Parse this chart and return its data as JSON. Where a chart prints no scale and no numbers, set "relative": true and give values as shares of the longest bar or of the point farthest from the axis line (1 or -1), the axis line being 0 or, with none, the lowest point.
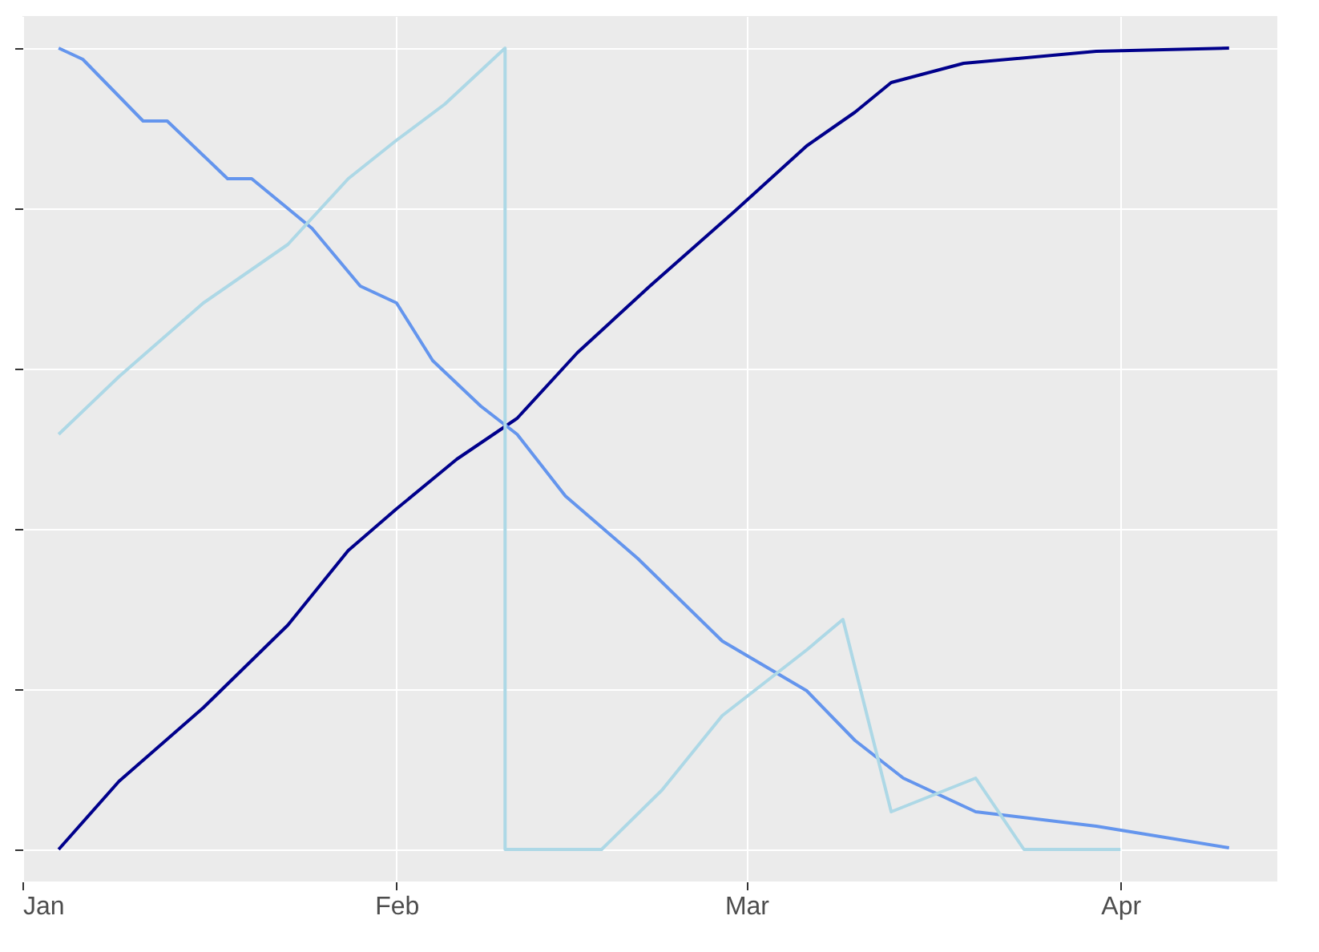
{
  "chart_data": {
    "type": "line",
    "relative": true,
    "grid": true,
    "xlim": [
      "--01-01",
      "--04-14"
    ],
    "xticks": [
      {
        "value": "--01-01",
        "label": "Jan"
      },
      {
        "value": "--02-01",
        "label": "Feb"
      },
      {
        "value": "--03-01",
        "label": "Mar"
      },
      {
        "value": "--04-01",
        "label": "Apr"
      }
    ],
    "series": [
      {
        "color": "#00008b",
        "x": [
          "--01-04",
          "--01-09",
          "--01-16",
          "--01-23",
          "--01-28",
          "--02-01",
          "--02-06",
          "--02-11",
          "--02-16",
          "--02-22",
          "--02-29",
          "--03-06",
          "--03-10",
          "--03-13",
          "--03-19",
          "--03-30",
          "--04-10"
        ],
        "values": [
          0,
          0.085,
          0.177,
          0.28,
          0.373,
          0.425,
          0.487,
          0.538,
          0.62,
          0.703,
          0.796,
          0.878,
          0.92,
          0.957,
          0.981,
          0.996,
          1
        ]
      },
      {
        "color": "#6495ed",
        "x": [
          "--01-04",
          "--01-06",
          "--01-11",
          "--01-13",
          "--01-18",
          "--01-20",
          "--01-25",
          "--01-29",
          "--02-01",
          "--02-04",
          "--02-08",
          "--02-11",
          "--02-15",
          "--02-21",
          "--02-28",
          "--03-06",
          "--03-10",
          "--03-14",
          "--03-20",
          "--03-30",
          "--04-10"
        ],
        "values": [
          1,
          0.986,
          0.909,
          0.909,
          0.837,
          0.837,
          0.775,
          0.703,
          0.682,
          0.61,
          0.553,
          0.518,
          0.441,
          0.363,
          0.26,
          0.198,
          0.136,
          0.089,
          0.047,
          0.029,
          0.002
        ]
      },
      {
        "color": "#add8e6",
        "x": [
          "--01-04",
          "--01-09",
          "--01-16",
          "--01-23",
          "--01-28",
          "--02-01",
          "--02-05",
          "--02-10",
          "--02-10",
          "--02-18",
          "--02-23",
          "--02-28",
          "--03-06",
          "--03-09",
          "--03-13",
          "--03-20",
          "--03-24",
          "--04-01"
        ],
        "values": [
          0.518,
          0.59,
          0.682,
          0.755,
          0.837,
          0.885,
          0.93,
          1,
          0,
          0,
          0.074,
          0.167,
          0.249,
          0.287,
          0.047,
          0.089,
          0,
          0
        ]
      }
    ]
  }
}
